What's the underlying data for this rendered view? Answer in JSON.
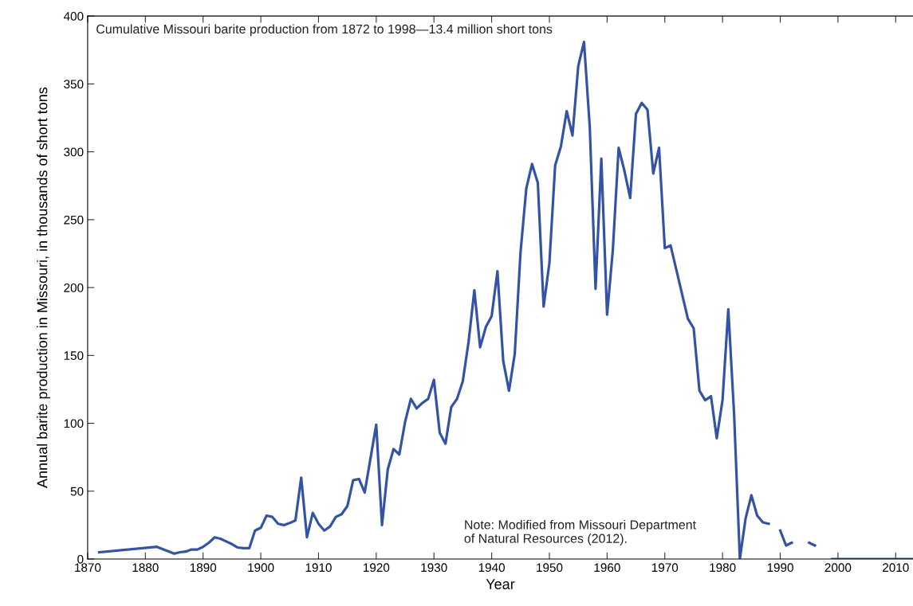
{
  "chart_data": {
    "type": "line",
    "xlabel": "Year",
    "ylabel": "Annual barite production in Missouri, in thousands of short tons",
    "annotations": [
      "Cumulative Missouri barite production from 1872 to 1998—13.4 million short tons",
      "Note: Modified from Missouri Department\nof Natural Resources (2012)."
    ],
    "xlim": [
      1870,
      2013
    ],
    "xticks": [
      1870,
      1880,
      1890,
      1900,
      1910,
      1920,
      1930,
      1940,
      1950,
      1960,
      1970,
      1980,
      1990,
      2000,
      2010
    ],
    "ylim": [
      0,
      400
    ],
    "yticks": [
      0,
      50,
      100,
      150,
      200,
      250,
      300,
      350,
      400
    ],
    "grid": false,
    "line_style": "solid",
    "marker": "none",
    "series": [
      {
        "color": "#3353a4",
        "x": [
          1872,
          1882,
          1885,
          1886,
          1887,
          1888,
          1889,
          1890,
          1891,
          1892,
          1893,
          1894,
          1895,
          1896,
          1897,
          1898,
          1899,
          1900,
          1901,
          1902,
          1903,
          1904,
          1905,
          1906,
          1907,
          1908,
          1909,
          1910,
          1911,
          1912,
          1913,
          1914,
          1915,
          1916,
          1917,
          1918,
          1919,
          1920,
          1921,
          1922,
          1923,
          1924,
          1925,
          1926,
          1927,
          1928,
          1929,
          1930,
          1931,
          1932,
          1933,
          1934,
          1935,
          1936,
          1937,
          1938,
          1939,
          1940,
          1941,
          1942,
          1943,
          1944,
          1945,
          1946,
          1947,
          1948,
          1949,
          1950,
          1951,
          1952,
          1953,
          1954,
          1955,
          1956,
          1957,
          1958,
          1959,
          1960,
          1961,
          1962,
          1963,
          1964,
          1965,
          1966,
          1967,
          1968,
          1969,
          1970,
          1971,
          1972,
          1973,
          1974,
          1975,
          1976,
          1977,
          1978,
          1979,
          1980,
          1981,
          1982,
          1983,
          1984,
          1985,
          1986,
          1987,
          1988,
          1989,
          1990,
          1991,
          1992,
          1993,
          1994,
          1995,
          1996,
          1997,
          1998,
          1999,
          2013
        ],
        "values": [
          5,
          9,
          4,
          5,
          5.5,
          7,
          7,
          9,
          12,
          16,
          15,
          13,
          11,
          8.5,
          8,
          8,
          21,
          23,
          32,
          31,
          26,
          25,
          26.5,
          28.5,
          60,
          16,
          34,
          26,
          21,
          24,
          31,
          33,
          39,
          58,
          59,
          49,
          74,
          99,
          25,
          66,
          81,
          77,
          101,
          118,
          111,
          115,
          118,
          132,
          93,
          85,
          112,
          118,
          131,
          160,
          198,
          156,
          171,
          179,
          212,
          146,
          124,
          151,
          226,
          273,
          291,
          277,
          186,
          218,
          290,
          304,
          330,
          312,
          363,
          381,
          318,
          199,
          295,
          180,
          228,
          303,
          286,
          266,
          328,
          336,
          331,
          284,
          303,
          229,
          231,
          213,
          195,
          177,
          170,
          124,
          117,
          120,
          89,
          117,
          184,
          107,
          0,
          30,
          47,
          32,
          27,
          26,
          null,
          21,
          10,
          12,
          null,
          null,
          12,
          10,
          null,
          null,
          0,
          0
        ]
      }
    ]
  }
}
